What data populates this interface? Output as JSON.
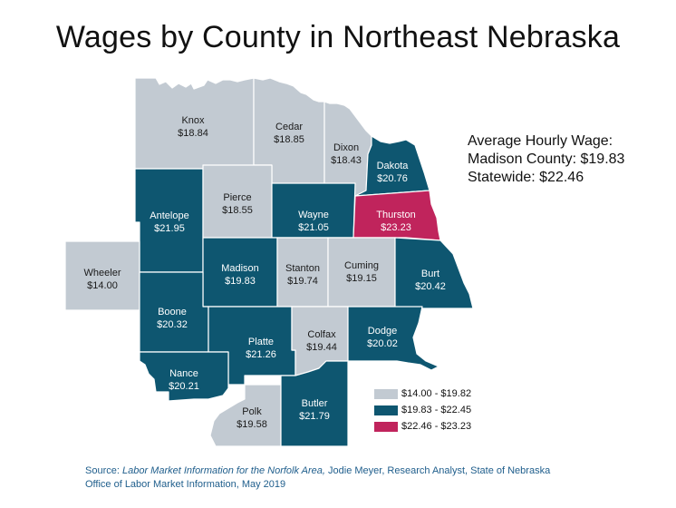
{
  "title": "Wages by County in Northeast Nebraska",
  "info": {
    "heading": "Average Hourly Wage:",
    "madison_line": "Madison County: $19.83",
    "statewide_line": "Statewide: $22.46"
  },
  "colors": {
    "low": "#c2cad2",
    "mid": "#0e5670",
    "high": "#c0245c"
  },
  "legend": [
    {
      "label": "$14.00 - $19.82",
      "tier": "low"
    },
    {
      "label": "$19.83 - $22.45",
      "tier": "mid"
    },
    {
      "label": "$22.46 - $23.23",
      "tier": "high"
    }
  ],
  "counties": [
    {
      "name": "Knox",
      "wage": "$18.84",
      "tier": "low"
    },
    {
      "name": "Cedar",
      "wage": "$18.85",
      "tier": "low"
    },
    {
      "name": "Dixon",
      "wage": "$18.43",
      "tier": "low"
    },
    {
      "name": "Dakota",
      "wage": "$20.76",
      "tier": "mid"
    },
    {
      "name": "Antelope",
      "wage": "$21.95",
      "tier": "mid"
    },
    {
      "name": "Pierce",
      "wage": "$18.55",
      "tier": "low"
    },
    {
      "name": "Wayne",
      "wage": "$21.05",
      "tier": "mid"
    },
    {
      "name": "Thurston",
      "wage": "$23.23",
      "tier": "high"
    },
    {
      "name": "Wheeler",
      "wage": "$14.00",
      "tier": "low"
    },
    {
      "name": "Madison",
      "wage": "$19.83",
      "tier": "mid"
    },
    {
      "name": "Stanton",
      "wage": "$19.74",
      "tier": "low"
    },
    {
      "name": "Cuming",
      "wage": "$19.15",
      "tier": "low"
    },
    {
      "name": "Burt",
      "wage": "$20.42",
      "tier": "mid"
    },
    {
      "name": "Boone",
      "wage": "$20.32",
      "tier": "mid"
    },
    {
      "name": "Platte",
      "wage": "$21.26",
      "tier": "mid"
    },
    {
      "name": "Colfax",
      "wage": "$19.44",
      "tier": "low"
    },
    {
      "name": "Dodge",
      "wage": "$20.02",
      "tier": "mid"
    },
    {
      "name": "Nance",
      "wage": "$20.21",
      "tier": "mid"
    },
    {
      "name": "Polk",
      "wage": "$19.58",
      "tier": "low"
    },
    {
      "name": "Butler",
      "wage": "$21.79",
      "tier": "mid"
    }
  ],
  "source": {
    "prefix": "Source: ",
    "title_italic": "Labor Market Information for the Norfolk Area,",
    "rest": " Jodie Meyer, Research Analyst, State of Nebraska",
    "line2": "Office of Labor Market Information, May 2019"
  }
}
